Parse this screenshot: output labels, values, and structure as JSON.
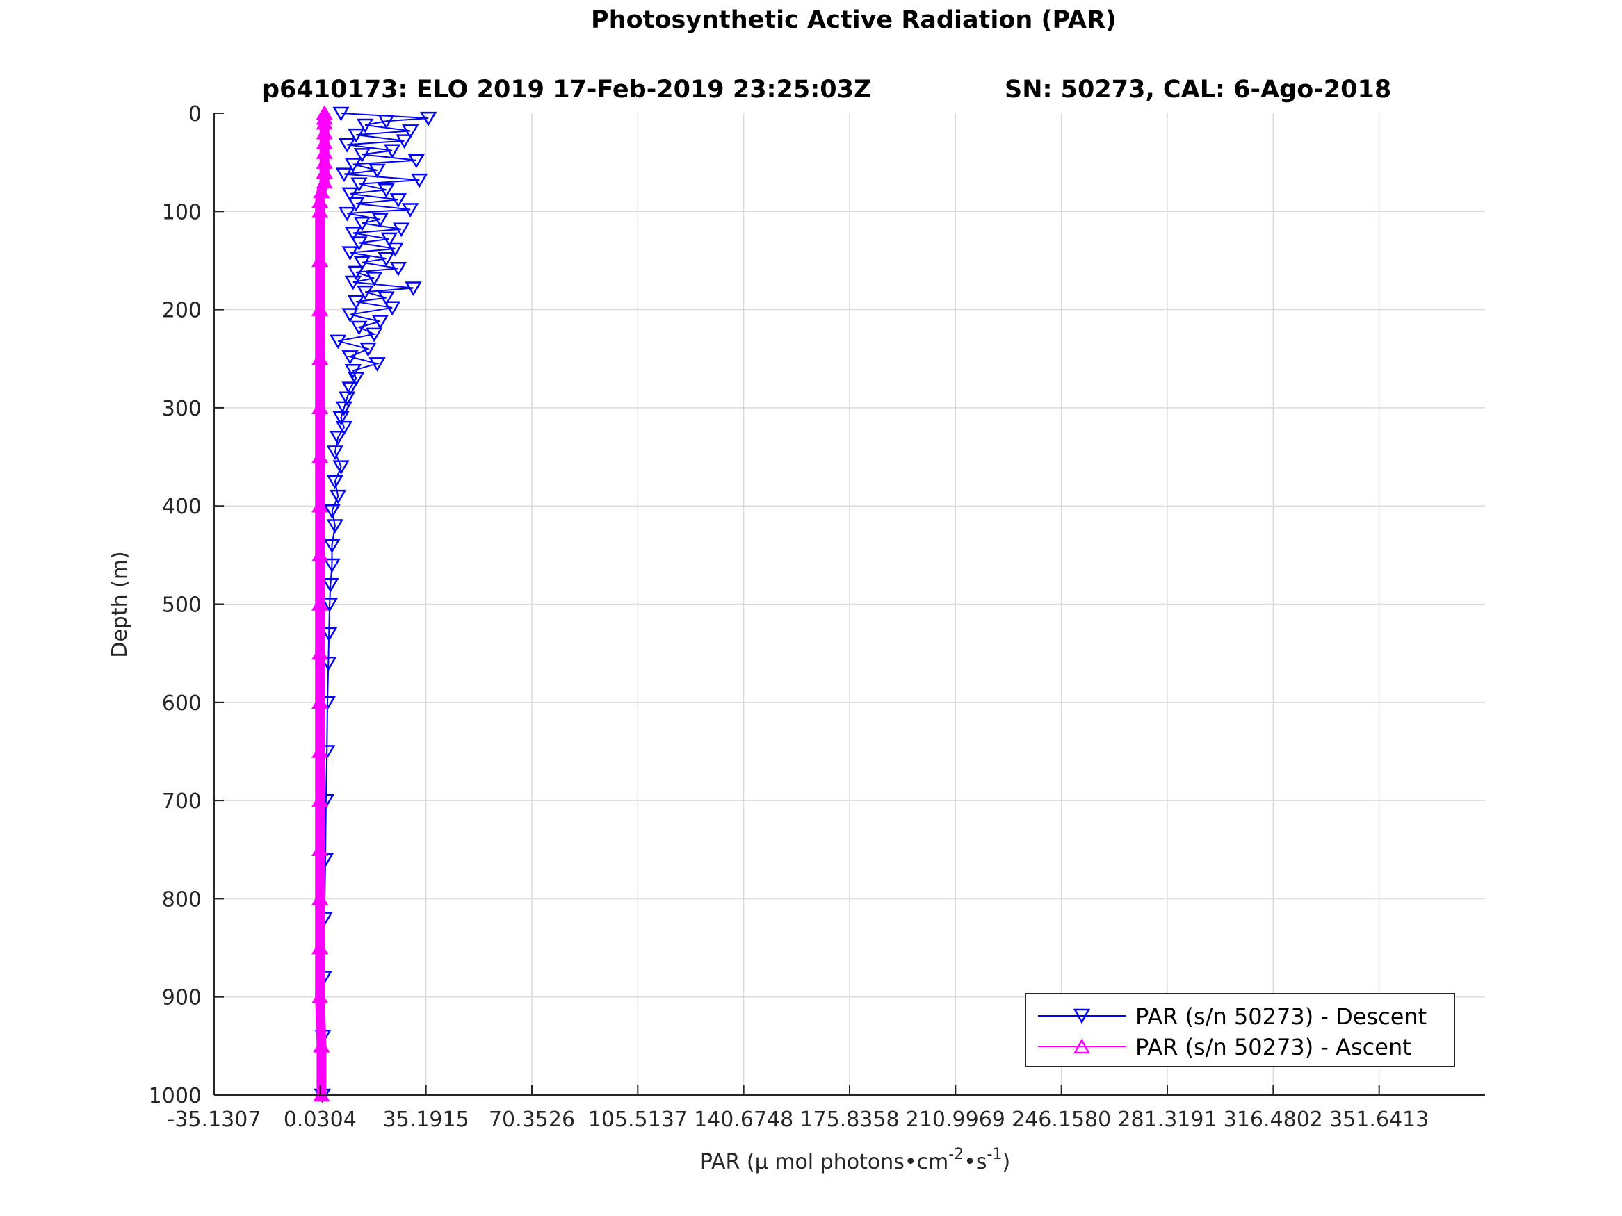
{
  "chart_data": {
    "type": "line",
    "title": "Photosynthetic Active Radiation (PAR)",
    "subtitle_left": "p6410173: ELO 2019 17-Feb-2019 23:25:03Z",
    "subtitle_right": "SN: 50273, CAL: 6-Ago-2018",
    "xlabel": "PAR (μ mol photons•cm",
    "xlabel_sup1": "-2",
    "xlabel_mid": "•s",
    "xlabel_sup2": "-1",
    "xlabel_end": ")",
    "ylabel": "Depth (m)",
    "xlim": [
      -35.1307,
      386.8024
    ],
    "ylim": [
      0,
      1000
    ],
    "y_reversed": true,
    "grid": true,
    "x_ticks": [
      -35.1307,
      0.0304,
      35.1915,
      70.3526,
      105.5137,
      140.6748,
      175.8358,
      210.9969,
      246.158,
      281.3191,
      316.4802,
      351.6413
    ],
    "x_tick_labels": [
      "-35.1307",
      "0.0304",
      "35.1915",
      "70.3526",
      "105.5137",
      "140.6748",
      "175.8358",
      "210.9969",
      "246.1580",
      "281.3191",
      "316.4802",
      "351.6413"
    ],
    "y_ticks": [
      0,
      100,
      200,
      300,
      400,
      500,
      600,
      700,
      800,
      900,
      1000
    ],
    "y_tick_labels": [
      "0",
      "100",
      "200",
      "300",
      "400",
      "500",
      "600",
      "700",
      "800",
      "900",
      "1000"
    ],
    "legend_position": "bottom-right",
    "series": [
      {
        "name": "PAR (s/n 50273) - Descent",
        "color": "#0000ff",
        "marker": "triangle-down",
        "depth": [
          0,
          5,
          8,
          12,
          18,
          22,
          28,
          32,
          38,
          42,
          48,
          52,
          58,
          62,
          68,
          72,
          78,
          82,
          88,
          92,
          98,
          102,
          108,
          112,
          118,
          122,
          128,
          132,
          138,
          142,
          148,
          152,
          158,
          162,
          168,
          172,
          178,
          182,
          188,
          192,
          198,
          205,
          212,
          218,
          225,
          232,
          240,
          248,
          255,
          262,
          270,
          280,
          290,
          300,
          310,
          320,
          330,
          345,
          360,
          375,
          390,
          405,
          420,
          440,
          460,
          480,
          500,
          530,
          560,
          600,
          650,
          700,
          760,
          820,
          880,
          940,
          1000
        ],
        "par": [
          7,
          36,
          22,
          15,
          30,
          12,
          28,
          9,
          24,
          14,
          32,
          11,
          19,
          8,
          33,
          13,
          22,
          10,
          26,
          12,
          30,
          9,
          20,
          14,
          27,
          11,
          23,
          13,
          25,
          10,
          22,
          14,
          26,
          12,
          18,
          11,
          31,
          15,
          22,
          12,
          24,
          10,
          20,
          13,
          18,
          6,
          16,
          10,
          19,
          11,
          12,
          10,
          9,
          8,
          7,
          8,
          6,
          5,
          7,
          5,
          6,
          4,
          5,
          4,
          4,
          3.5,
          3.2,
          3,
          2.8,
          2.5,
          2.3,
          2,
          1.8,
          1.5,
          1.3,
          1,
          0.8
        ]
      },
      {
        "name": "PAR (s/n 50273) - Ascent",
        "color": "#ff00ff",
        "marker": "triangle-up",
        "depth": [
          0,
          5,
          10,
          20,
          30,
          40,
          50,
          60,
          70,
          80,
          90,
          100,
          150,
          200,
          250,
          300,
          350,
          400,
          450,
          500,
          550,
          600,
          650,
          700,
          750,
          800,
          850,
          900,
          950,
          1000
        ],
        "par": [
          1.5,
          1.5,
          1.5,
          1.5,
          1.5,
          1.5,
          1.5,
          1.5,
          1.5,
          0.5,
          0,
          0,
          0,
          0,
          0,
          0,
          0,
          0,
          0,
          0,
          0,
          0,
          0,
          0,
          0,
          0,
          0,
          0,
          0.5,
          0.5
        ]
      }
    ]
  }
}
